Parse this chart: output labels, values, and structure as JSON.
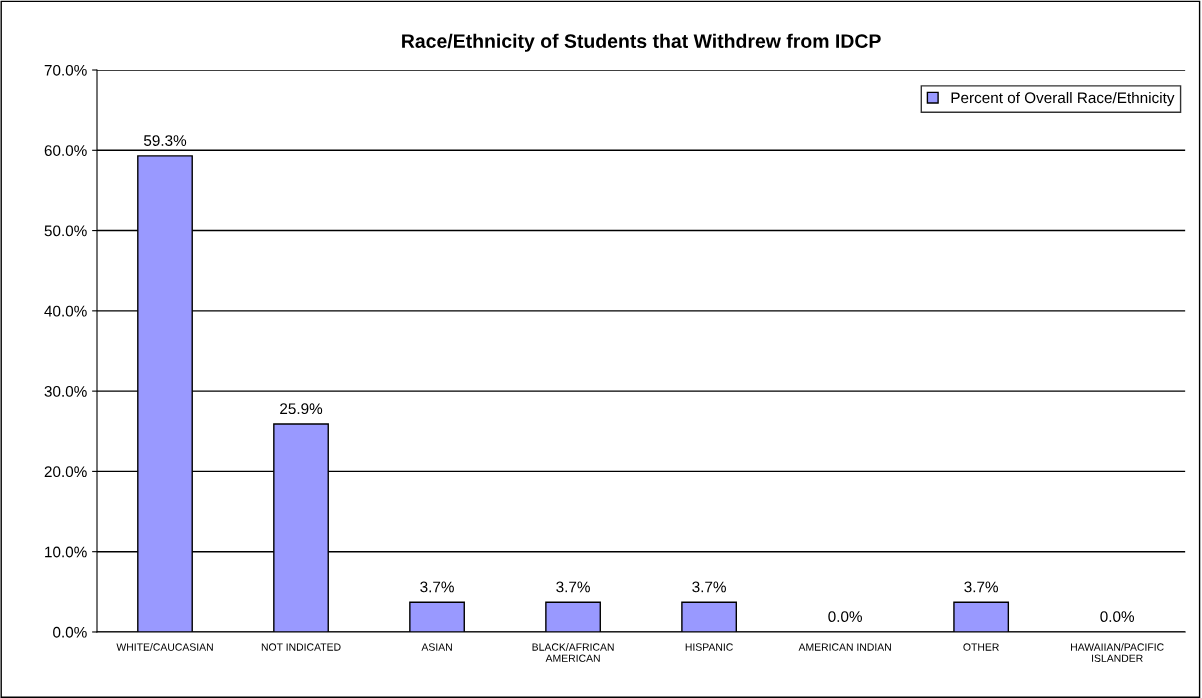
{
  "chart_data": {
    "type": "bar",
    "title": "Race/Ethnicity of Students that Withdrew from IDCP",
    "categories": [
      "WHITE/CAUCASIAN",
      "NOT INDICATED",
      "ASIAN",
      "BLACK/AFRICAN\nAMERICAN",
      "HISPANIC",
      "AMERICAN INDIAN",
      "OTHER",
      "HAWAIIAN/PACIFIC\nISLANDER"
    ],
    "series": [
      {
        "name": "Percent of Overall Race/Ethnicity",
        "color": "#9999ff",
        "values": [
          59.3,
          25.9,
          3.7,
          3.7,
          3.7,
          0.0,
          3.7,
          0.0
        ],
        "value_labels": [
          "59.3%",
          "25.9%",
          "3.7%",
          "3.7%",
          "3.7%",
          "0.0%",
          "3.7%",
          "0.0%"
        ]
      }
    ],
    "ylim": [
      0,
      70
    ],
    "yticks": [
      {
        "value": 0,
        "label": "0.0%"
      },
      {
        "value": 10,
        "label": "10.0%"
      },
      {
        "value": 20,
        "label": "20.0%"
      },
      {
        "value": 30,
        "label": "30.0%"
      },
      {
        "value": 40,
        "label": "40.0%"
      },
      {
        "value": 50,
        "label": "50.0%"
      },
      {
        "value": 60,
        "label": "60.0%"
      },
      {
        "value": 70,
        "label": "70.0%"
      }
    ],
    "grid": "y",
    "legend": "top right"
  }
}
